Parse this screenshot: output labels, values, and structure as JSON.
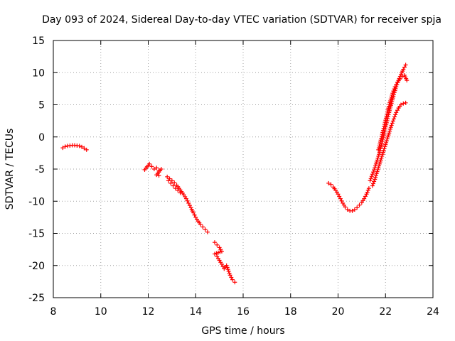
{
  "chart_data": {
    "type": "scatter",
    "title": "Day 093 of 2024, Sidereal Day-to-day VTEC variation (SDTVAR) for receiver spja",
    "xlabel": "GPS time / hours",
    "ylabel": "SDTVAR / TECUs",
    "xlim": [
      8,
      24
    ],
    "ylim": [
      -25,
      15
    ],
    "xticks": [
      8,
      10,
      12,
      14,
      16,
      18,
      20,
      22,
      24
    ],
    "yticks": [
      -25,
      -20,
      -15,
      -10,
      -5,
      0,
      5,
      10,
      15
    ],
    "xtick_labels": [
      "8",
      "10",
      "12",
      "14",
      "16",
      "18",
      "20",
      "22",
      "24"
    ],
    "ytick_labels": [
      "-25",
      "-20",
      "-15",
      "-10",
      "-5",
      "0",
      "5",
      "10",
      "15"
    ],
    "grid": true,
    "marker": "+",
    "color": "#ff0000",
    "series": [
      {
        "name": "segment-1",
        "x": [
          8.4,
          8.5,
          8.6,
          8.7,
          8.8,
          8.9,
          9.0,
          9.1,
          9.2,
          9.3,
          9.4
        ],
        "y": [
          -1.7,
          -1.5,
          -1.4,
          -1.35,
          -1.3,
          -1.3,
          -1.35,
          -1.4,
          -1.55,
          -1.75,
          -2.0
        ]
      },
      {
        "name": "segment-2",
        "x": [
          11.85,
          12.05,
          12.15,
          12.25,
          12.35,
          12.45,
          12.55,
          12.35,
          12.45
        ],
        "y": [
          -5.1,
          -4.2,
          -4.6,
          -5.0,
          -4.8,
          -5.2,
          -5.0,
          -5.9,
          -6.0
        ]
      },
      {
        "name": "segment-3",
        "x": [
          12.8,
          12.9,
          13.0,
          13.1,
          13.2,
          13.3,
          13.4,
          13.5,
          13.6,
          13.7,
          13.8,
          13.9,
          14.0,
          14.1,
          14.2,
          14.3,
          14.4,
          14.5,
          12.85,
          12.95,
          13.05,
          13.15,
          13.25,
          13.35
        ],
        "y": [
          -6.2,
          -6.5,
          -6.8,
          -7.1,
          -7.5,
          -8.0,
          -8.5,
          -9.0,
          -9.6,
          -10.3,
          -11.0,
          -11.8,
          -12.5,
          -13.1,
          -13.6,
          -14.0,
          -14.4,
          -14.8,
          -6.8,
          -7.2,
          -7.6,
          -8.0,
          -8.3,
          -8.7
        ]
      },
      {
        "name": "segment-4",
        "x": [
          14.8,
          14.9,
          15.0,
          15.1,
          14.8,
          14.9,
          15.0,
          15.1,
          15.2,
          15.3,
          15.45,
          15.55,
          15.65
        ],
        "y": [
          -16.4,
          -16.8,
          -17.2,
          -17.8,
          -18.2,
          -18.6,
          -19.2,
          -19.8,
          -20.5,
          -20.0,
          -21.5,
          -22.2,
          -22.6
        ]
      },
      {
        "name": "segment-5",
        "x": [
          19.6,
          19.7,
          19.8,
          19.9,
          20.0,
          20.1,
          20.2,
          20.3,
          20.4,
          20.5,
          20.6,
          20.7,
          20.8,
          20.9,
          21.0,
          21.1,
          21.2,
          21.3
        ],
        "y": [
          -7.2,
          -7.4,
          -7.8,
          -8.3,
          -8.9,
          -9.6,
          -10.3,
          -10.9,
          -11.3,
          -11.5,
          -11.5,
          -11.3,
          -11.0,
          -10.6,
          -10.2,
          -9.6,
          -8.9,
          -8.0
        ]
      },
      {
        "name": "segment-6a",
        "x": [
          21.35,
          21.45,
          21.55,
          21.65,
          21.75,
          21.85,
          21.95,
          22.05,
          22.15,
          22.25,
          22.35,
          22.45,
          22.55,
          22.65,
          22.75,
          22.85
        ],
        "y": [
          -6.8,
          -5.8,
          -4.8,
          -3.6,
          -2.4,
          -1.0,
          0.6,
          2.2,
          3.8,
          5.2,
          6.6,
          7.8,
          8.8,
          9.7,
          10.5,
          11.2
        ]
      },
      {
        "name": "segment-6b",
        "x": [
          21.45,
          21.55,
          21.65,
          21.75,
          21.85,
          21.95,
          22.05,
          22.15,
          22.25,
          22.35,
          22.45,
          22.55,
          22.65,
          22.75,
          22.85
        ],
        "y": [
          -7.6,
          -6.6,
          -5.4,
          -4.2,
          -3.0,
          -1.8,
          -0.6,
          0.6,
          1.8,
          2.8,
          3.8,
          4.5,
          5.0,
          5.2,
          5.3
        ]
      },
      {
        "name": "segment-6c",
        "x": [
          21.7,
          21.8,
          21.9,
          22.0,
          22.1,
          22.2,
          22.3,
          22.4,
          22.5,
          22.6,
          22.7,
          22.8,
          22.9
        ],
        "y": [
          -2.0,
          -0.5,
          1.0,
          2.6,
          4.2,
          5.6,
          6.8,
          7.8,
          8.5,
          9.0,
          9.4,
          9.6,
          8.8
        ]
      }
    ]
  }
}
